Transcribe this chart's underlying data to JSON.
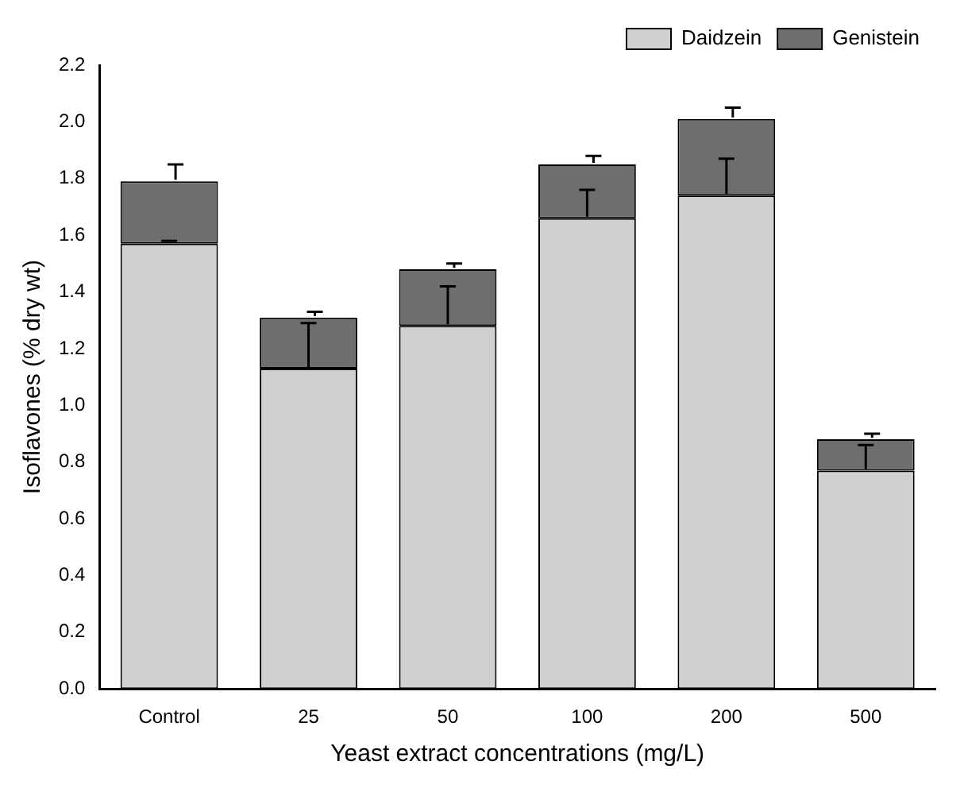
{
  "chart_data": {
    "type": "bar",
    "stacked": true,
    "xlabel": "Yeast extract concentrations (mg/L)",
    "ylabel": "Isoflavones (% dry wt)",
    "categories": [
      "Control",
      "25",
      "50",
      "100",
      "200",
      "500"
    ],
    "series": [
      {
        "name": "Daidzein",
        "color": "#d0d0d0",
        "values": [
          1.57,
          1.13,
          1.28,
          1.66,
          1.74,
          0.77
        ],
        "errors": [
          0.01,
          0.16,
          0.14,
          0.1,
          0.13,
          0.09
        ]
      },
      {
        "name": "Genistein",
        "color": "#6e6e6e",
        "values": [
          0.22,
          0.18,
          0.2,
          0.19,
          0.27,
          0.11
        ],
        "errors": [
          0.06,
          0.02,
          0.02,
          0.03,
          0.04,
          0.02
        ]
      }
    ],
    "ylim": [
      0,
      2.2
    ],
    "yticks": [
      {
        "value": 0,
        "label": "0.0"
      },
      0.2,
      0.4,
      0.6,
      0.8,
      {
        "value": 1,
        "label": "1.0"
      },
      1.2,
      1.4,
      1.6,
      1.8,
      {
        "value": 2,
        "label": "2.0"
      },
      2.2
    ],
    "grid": false,
    "legend": "top right"
  }
}
